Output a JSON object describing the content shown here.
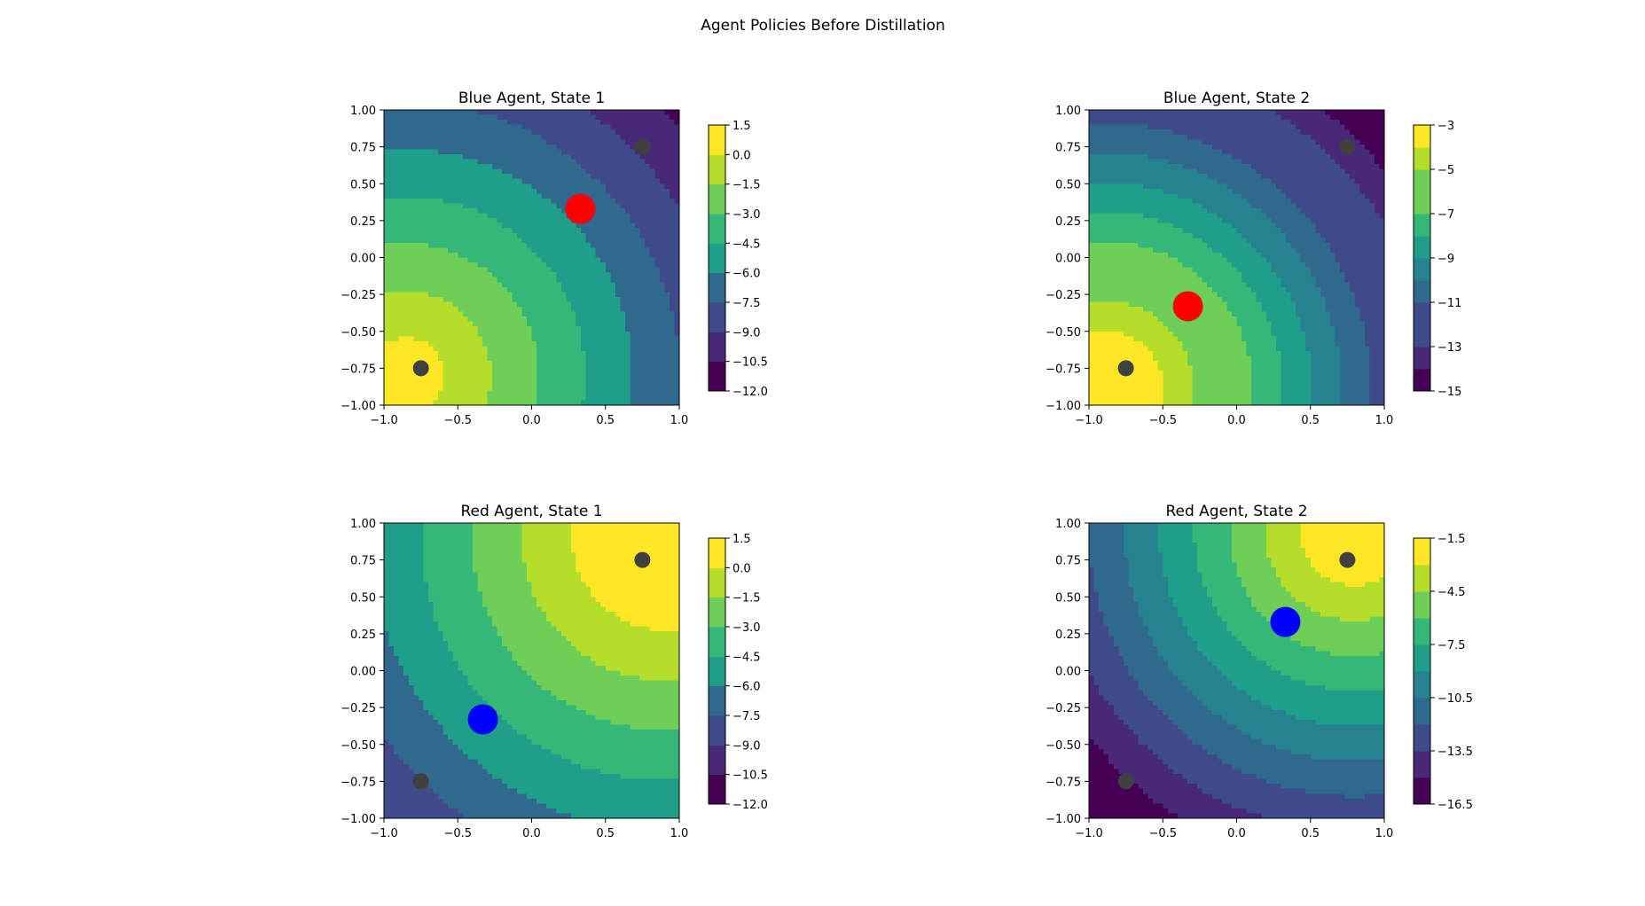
{
  "figure": {
    "suptitle": "Agent Policies Before Distillation"
  },
  "colormap": [
    "#440154",
    "#482878",
    "#3e4a89",
    "#31688e",
    "#26828e",
    "#1f9e89",
    "#35b779",
    "#6ece58",
    "#b5de2b",
    "#fde725"
  ],
  "chart_data": [
    {
      "type": "contour",
      "title": "Blue Agent, State 1",
      "xlim": [
        -1.0,
        1.0
      ],
      "ylim": [
        -1.0,
        1.0
      ],
      "xticks": [
        "−1.0",
        "−0.5",
        "0.0",
        "0.5",
        "1.0"
      ],
      "yticks": [
        "1.00",
        "0.75",
        "0.50",
        "0.25",
        "0.00",
        "−0.25",
        "−0.50",
        "−0.75",
        "−1.00"
      ],
      "colorbar": {
        "levels": [
          -12.0,
          -10.5,
          -9.0,
          -7.5,
          -6.0,
          -4.5,
          -3.0,
          -1.5,
          0.0,
          1.5
        ],
        "labels": [
          "1.5",
          "0.0",
          "−1.5",
          "−3.0",
          "−4.5",
          "−6.0",
          "−7.5",
          "−9.0",
          "−10.5",
          "−12.0"
        ]
      },
      "field": {
        "peak": [
          -0.85,
          -0.8
        ],
        "scale": 4.7,
        "max": 1.2,
        "flat": 0
      },
      "agent": {
        "x": 0.33,
        "y": 0.33,
        "color": "#ff0000"
      },
      "landmarks": [
        {
          "x": -0.75,
          "y": -0.75
        },
        {
          "x": 0.75,
          "y": 0.75
        }
      ]
    },
    {
      "type": "contour",
      "title": "Blue Agent, State 2",
      "xlim": [
        -1.0,
        1.0
      ],
      "ylim": [
        -1.0,
        1.0
      ],
      "xticks": [
        "−1.0",
        "−0.5",
        "0.0",
        "0.5",
        "1.0"
      ],
      "yticks": [
        "1.00",
        "0.75",
        "0.50",
        "0.25",
        "0.00",
        "−0.25",
        "−0.50",
        "−0.75",
        "−1.00"
      ],
      "colorbar": {
        "levels": [
          -15,
          -14,
          -13,
          -12,
          -11,
          -10,
          -9,
          -8,
          -7,
          -6,
          -5,
          -4,
          -3
        ],
        "labels": [
          "−3",
          "−5",
          "−7",
          "−9",
          "−11",
          "−13",
          "−15"
        ]
      },
      "field": {
        "peak": [
          -0.9,
          -0.9
        ],
        "scale": 5.0,
        "max": -3.2,
        "flat": 0.25
      },
      "agent": {
        "x": -0.33,
        "y": -0.33,
        "color": "#ff0000"
      },
      "landmarks": [
        {
          "x": -0.75,
          "y": -0.75
        },
        {
          "x": 0.75,
          "y": 0.75
        }
      ]
    },
    {
      "type": "contour",
      "title": "Red Agent, State 1",
      "xlim": [
        -1.0,
        1.0
      ],
      "ylim": [
        -1.0,
        1.0
      ],
      "xticks": [
        "−1.0",
        "−0.5",
        "0.0",
        "0.5",
        "1.0"
      ],
      "yticks": [
        "1.00",
        "0.75",
        "0.50",
        "0.25",
        "0.00",
        "−0.25",
        "−0.50",
        "−0.75",
        "−1.00"
      ],
      "colorbar": {
        "levels": [
          -12.0,
          -10.5,
          -9.0,
          -7.5,
          -6.0,
          -4.5,
          -3.0,
          -1.5,
          0.0,
          1.5
        ],
        "labels": [
          "1.5",
          "0.0",
          "−1.5",
          "−3.0",
          "−4.5",
          "−6.0",
          "−7.5",
          "−9.0",
          "−10.5",
          "−12.0"
        ]
      },
      "field": {
        "peak": [
          0.9,
          0.9
        ],
        "scale": 4.4,
        "max": 1.2,
        "flat": 0.35
      },
      "agent": {
        "x": -0.33,
        "y": -0.33,
        "color": "#0000ff"
      },
      "landmarks": [
        {
          "x": -0.75,
          "y": -0.75
        },
        {
          "x": 0.75,
          "y": 0.75
        }
      ]
    },
    {
      "type": "contour",
      "title": "Red Agent, State 2",
      "xlim": [
        -1.0,
        1.0
      ],
      "ylim": [
        -1.0,
        1.0
      ],
      "xticks": [
        "−1.0",
        "−0.5",
        "0.0",
        "0.5",
        "1.0"
      ],
      "yticks": [
        "1.00",
        "0.75",
        "0.50",
        "0.25",
        "0.00",
        "−0.25",
        "−0.50",
        "−0.75",
        "−1.00"
      ],
      "colorbar": {
        "levels": [
          -16.5,
          -15.0,
          -13.5,
          -12.0,
          -10.5,
          -9.0,
          -7.5,
          -6.0,
          -4.5,
          -3.0,
          -1.5
        ],
        "labels": [
          "−1.5",
          "−4.5",
          "−7.5",
          "−10.5",
          "−13.5",
          "−16.5"
        ]
      },
      "field": {
        "peak": [
          0.8,
          0.95
        ],
        "scale": 6.3,
        "max": -1.6,
        "flat": 0.15
      },
      "agent": {
        "x": 0.33,
        "y": 0.33,
        "color": "#0000ff"
      },
      "landmarks": [
        {
          "x": -0.75,
          "y": -0.75
        },
        {
          "x": 0.75,
          "y": 0.75
        }
      ]
    }
  ]
}
